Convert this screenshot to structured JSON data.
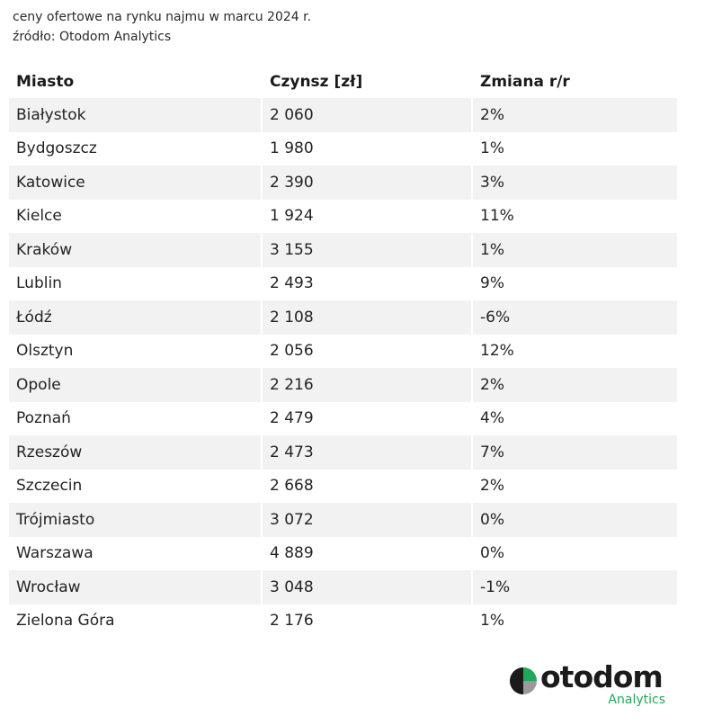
{
  "caption": {
    "line1": "ceny ofertowe na rynku najmu  w marcu 2024 r.",
    "line2": "źródło: Otodom Analytics"
  },
  "table": {
    "headers": [
      "Miasto",
      "Czynsz [zł]",
      "Zmiana r/r"
    ],
    "rows": [
      [
        "Białystok",
        "2 060",
        "2%"
      ],
      [
        "Bydgoszcz",
        "1 980",
        "1%"
      ],
      [
        "Katowice",
        "2 390",
        "3%"
      ],
      [
        "Kielce",
        "1 924",
        "11%"
      ],
      [
        "Kraków",
        "3 155",
        "1%"
      ],
      [
        "Lublin",
        "2 493",
        "9%"
      ],
      [
        "Łódź",
        "2 108",
        "-6%"
      ],
      [
        "Olsztyn",
        "2 056",
        "12%"
      ],
      [
        "Opole",
        "2 216",
        "2%"
      ],
      [
        "Poznań",
        "2 479",
        "4%"
      ],
      [
        "Rzeszów",
        "2 473",
        "7%"
      ],
      [
        "Szczecin",
        "2 668",
        "2%"
      ],
      [
        "Trójmiasto",
        "3 072",
        "0%"
      ],
      [
        "Warszawa",
        "4 889",
        "0%"
      ],
      [
        "Wrocław",
        "3 048",
        "-1%"
      ],
      [
        "Zielona Góra",
        "2 176",
        "1%"
      ]
    ]
  },
  "logo": {
    "wordmark": "otodom",
    "sub": "Analytics",
    "icon": "otodom-logo-icon",
    "colors": {
      "dark": "#1b1b1b",
      "green": "#1fa85a",
      "gray": "#9a9a9a"
    }
  },
  "colors": {
    "stripe": "#f2f2f2",
    "text": "#232323"
  }
}
